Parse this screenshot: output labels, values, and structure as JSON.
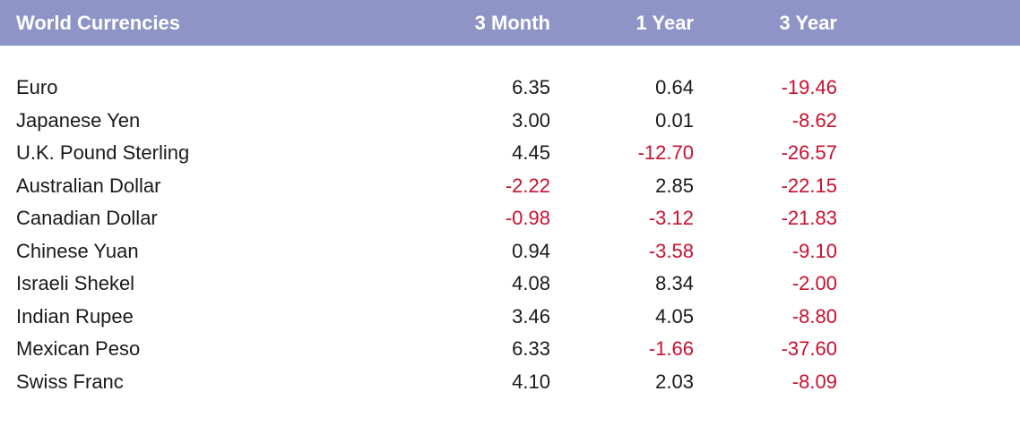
{
  "chart_data": {
    "type": "table",
    "columns": [
      "World Currencies",
      "3 Month",
      "1 Year",
      "3 Year"
    ],
    "rows": [
      {
        "currency": "Euro",
        "m3": "6.35",
        "y1": "0.64",
        "y3": "-19.46"
      },
      {
        "currency": "Japanese Yen",
        "m3": "3.00",
        "y1": "0.01",
        "y3": "-8.62"
      },
      {
        "currency": "U.K. Pound Sterling",
        "m3": "4.45",
        "y1": "-12.70",
        "y3": "-26.57"
      },
      {
        "currency": "Australian Dollar",
        "m3": "-2.22",
        "y1": "2.85",
        "y3": "-22.15"
      },
      {
        "currency": "Canadian Dollar",
        "m3": "-0.98",
        "y1": "-3.12",
        "y3": "-21.83"
      },
      {
        "currency": "Chinese Yuan",
        "m3": "0.94",
        "y1": "-3.58",
        "y3": "-9.10"
      },
      {
        "currency": "Israeli Shekel",
        "m3": "4.08",
        "y1": "8.34",
        "y3": "-2.00"
      },
      {
        "currency": "Indian Rupee",
        "m3": "3.46",
        "y1": "4.05",
        "y3": "-8.80"
      },
      {
        "currency": "Mexican Peso",
        "m3": "6.33",
        "y1": "-1.66",
        "y3": "-37.60"
      },
      {
        "currency": "Swiss Franc",
        "m3": "4.10",
        "y1": "2.03",
        "y3": "-8.09"
      }
    ]
  },
  "colors": {
    "header_background": "#8e95c6",
    "header_text": "#ffffff",
    "positive_text": "#1a1a1a",
    "negative_text": "#c8102e"
  }
}
